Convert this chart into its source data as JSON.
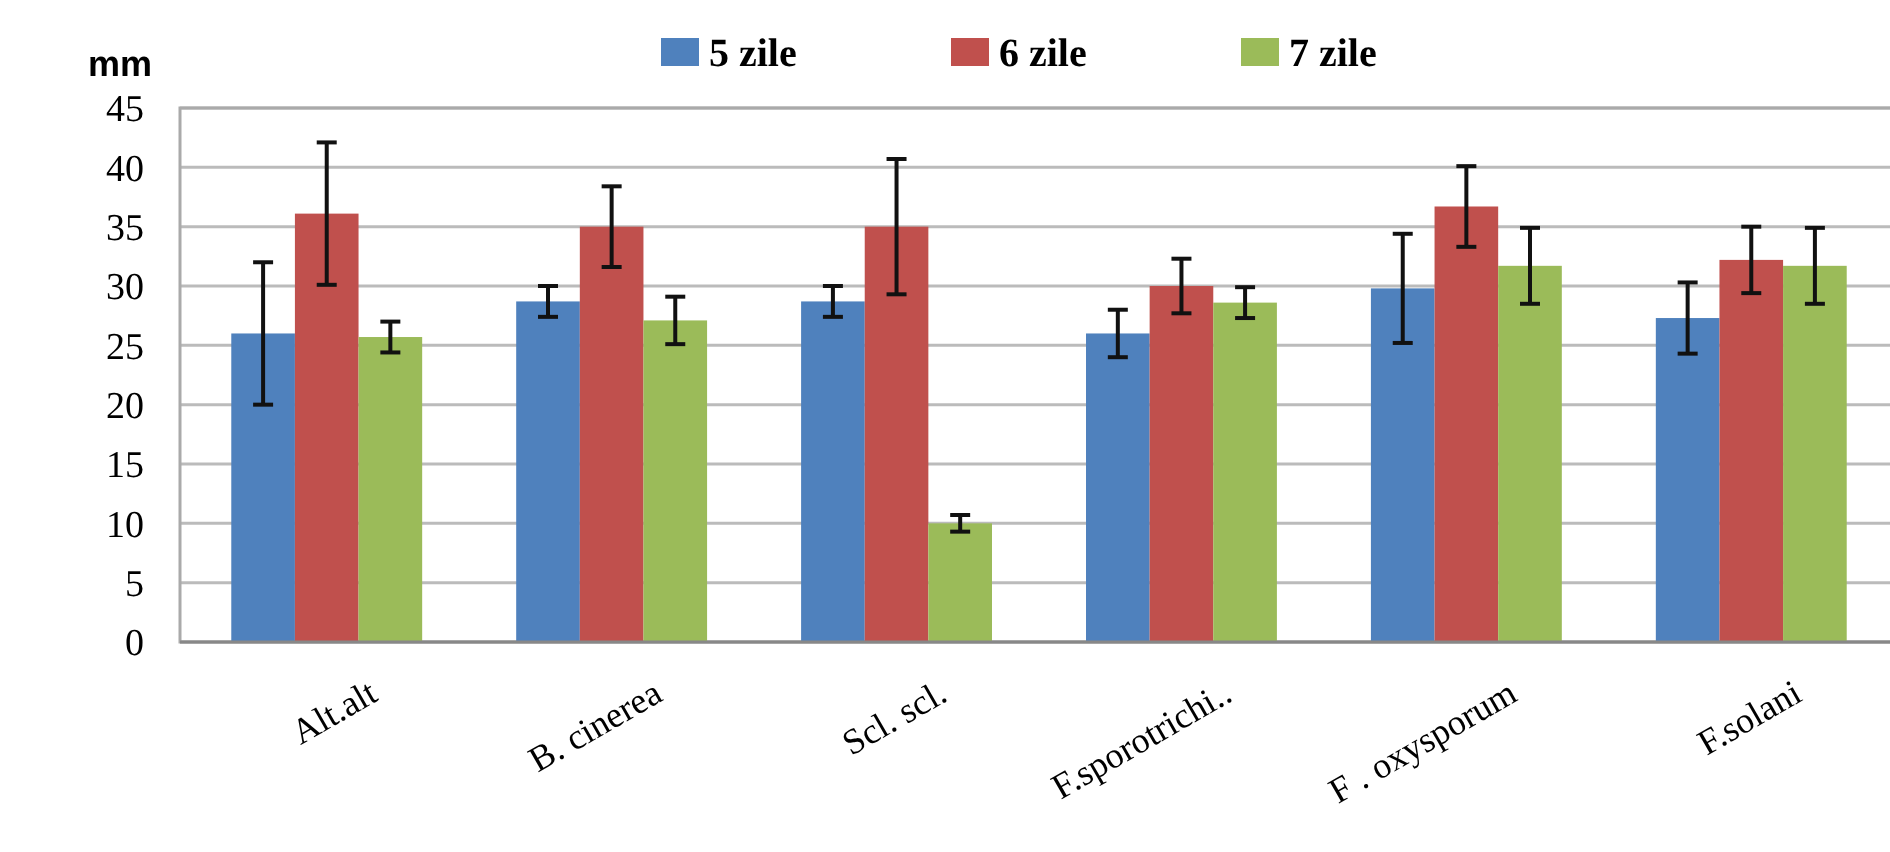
{
  "chart_data": {
    "type": "bar",
    "ylabel": "mm",
    "categories": [
      "Alt.alt",
      "B. cinerea",
      "Scl. scl.",
      "F.sporotrichi..",
      "F . oxysporum",
      "F.solani"
    ],
    "series": [
      {
        "name": "5 zile",
        "color": "#4f81bd",
        "values": [
          26,
          28.7,
          28.7,
          26,
          29.8,
          27.3
        ],
        "errors": [
          6,
          1.3,
          1.3,
          2,
          4.6,
          3
        ]
      },
      {
        "name": "6 zile",
        "color": "#c0504d",
        "values": [
          36.1,
          35,
          35,
          30,
          36.7,
          32.2
        ],
        "errors": [
          6,
          3.4,
          5.7,
          2.3,
          3.4,
          2.8
        ]
      },
      {
        "name": "7 zile",
        "color": "#9bbb59",
        "values": [
          25.7,
          27.1,
          10,
          28.6,
          31.7,
          31.7
        ],
        "errors": [
          1.3,
          2,
          0.7,
          1.3,
          3.2,
          3.2
        ]
      }
    ],
    "ylim": [
      0,
      45
    ],
    "yticks": [
      0,
      5,
      10,
      15,
      20,
      25,
      30,
      35,
      40,
      45
    ],
    "grid": "y",
    "legend": "top"
  }
}
